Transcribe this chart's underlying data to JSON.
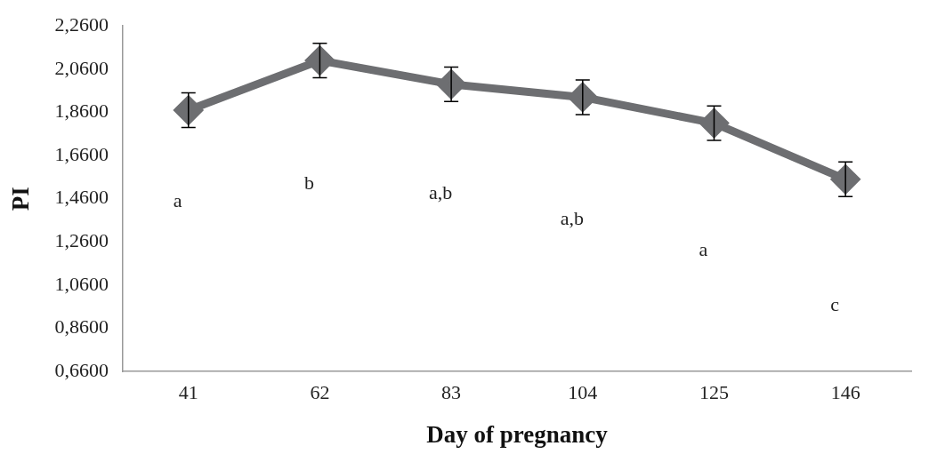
{
  "chart_data": {
    "type": "line",
    "xlabel": "Day of pregnancy",
    "ylabel": "PI",
    "categories": [
      "41",
      "62",
      "83",
      "104",
      "125",
      "146"
    ],
    "series": [
      {
        "color": "#6d6e71",
        "values": [
          1.87,
          2.1,
          1.99,
          1.93,
          1.81,
          1.55
        ],
        "errors": [
          0.08,
          0.08,
          0.08,
          0.08,
          0.08,
          0.08
        ]
      }
    ],
    "ylim": [
      0.66,
      2.26
    ],
    "yticks": [
      {
        "value": 0.66,
        "label": "0,6600"
      },
      {
        "value": 0.86,
        "label": "0,8600"
      },
      {
        "value": 1.06,
        "label": "1,0600"
      },
      {
        "value": 1.26,
        "label": "1,2600"
      },
      {
        "value": 1.46,
        "label": "1,4600"
      },
      {
        "value": 1.66,
        "label": "1,6600"
      },
      {
        "value": 1.86,
        "label": "1,8600"
      },
      {
        "value": 2.06,
        "label": "2,0600"
      },
      {
        "value": 2.26,
        "label": "2,2600"
      }
    ],
    "marker": "diamond",
    "grid": false,
    "legend": false,
    "annotations": [
      "a",
      "b",
      "a,b",
      "a,b",
      "a",
      "c"
    ]
  }
}
